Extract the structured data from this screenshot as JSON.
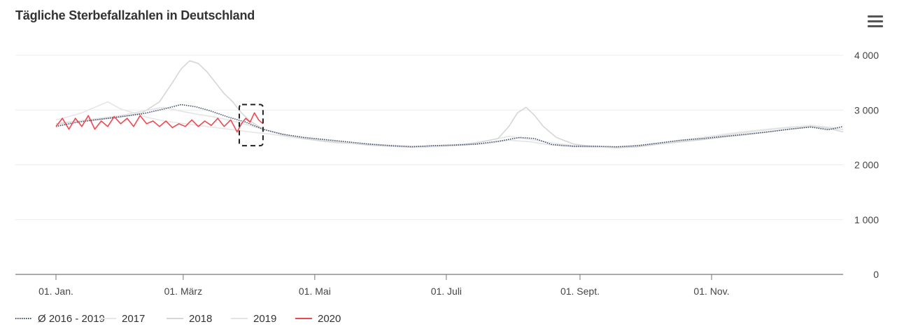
{
  "chart_data": {
    "type": "line",
    "title": "Tägliche Sterbefallzahlen in Deutschland",
    "xlabel": "",
    "ylabel": "",
    "x_unit": "day of year",
    "xlim": [
      0,
      365
    ],
    "ylim": [
      0,
      4000
    ],
    "yticks": [
      {
        "value": 0,
        "label": "0"
      },
      {
        "value": 1000,
        "label": "1 000"
      },
      {
        "value": 2000,
        "label": "2 000"
      },
      {
        "value": 3000,
        "label": "3 000"
      },
      {
        "value": 4000,
        "label": "4 000"
      }
    ],
    "xticks": [
      {
        "value": 0,
        "label": "01. Jan."
      },
      {
        "value": 59,
        "label": "01. März"
      },
      {
        "value": 120,
        "label": "01. Mai"
      },
      {
        "value": 181,
        "label": "01. Juli"
      },
      {
        "value": 243,
        "label": "01. Sept."
      },
      {
        "value": 304,
        "label": "01. Nov."
      }
    ],
    "grid": true,
    "legend_position": "bottom-left",
    "annotation": {
      "type": "dashed-box",
      "x_range": [
        85,
        96
      ],
      "y_range": [
        2350,
        3100
      ]
    },
    "series": [
      {
        "name": "Ø 2016 - 2019",
        "color": "#3d4a6b",
        "style": "dotted",
        "points": [
          [
            0,
            2700
          ],
          [
            10,
            2780
          ],
          [
            20,
            2830
          ],
          [
            30,
            2880
          ],
          [
            40,
            2930
          ],
          [
            50,
            3020
          ],
          [
            58,
            3100
          ],
          [
            65,
            3060
          ],
          [
            72,
            2980
          ],
          [
            80,
            2870
          ],
          [
            88,
            2780
          ],
          [
            96,
            2650
          ],
          [
            105,
            2560
          ],
          [
            115,
            2500
          ],
          [
            125,
            2460
          ],
          [
            135,
            2420
          ],
          [
            145,
            2380
          ],
          [
            155,
            2350
          ],
          [
            165,
            2330
          ],
          [
            175,
            2350
          ],
          [
            185,
            2360
          ],
          [
            195,
            2380
          ],
          [
            205,
            2430
          ],
          [
            215,
            2500
          ],
          [
            222,
            2480
          ],
          [
            230,
            2370
          ],
          [
            240,
            2340
          ],
          [
            250,
            2340
          ],
          [
            260,
            2330
          ],
          [
            270,
            2350
          ],
          [
            280,
            2400
          ],
          [
            290,
            2450
          ],
          [
            300,
            2480
          ],
          [
            310,
            2520
          ],
          [
            320,
            2560
          ],
          [
            330,
            2600
          ],
          [
            340,
            2650
          ],
          [
            350,
            2690
          ],
          [
            358,
            2640
          ],
          [
            365,
            2700
          ]
        ]
      },
      {
        "name": "2017",
        "color": "#e6e6e6",
        "style": "solid",
        "points": [
          [
            0,
            2820
          ],
          [
            6,
            2880
          ],
          [
            12,
            2950
          ],
          [
            18,
            3050
          ],
          [
            24,
            3150
          ],
          [
            30,
            3020
          ],
          [
            36,
            2950
          ],
          [
            42,
            2870
          ],
          [
            50,
            2800
          ],
          [
            60,
            2750
          ],
          [
            70,
            2700
          ],
          [
            80,
            2650
          ],
          [
            90,
            2600
          ],
          [
            100,
            2560
          ],
          [
            110,
            2500
          ],
          [
            120,
            2450
          ],
          [
            130,
            2400
          ],
          [
            140,
            2390
          ],
          [
            150,
            2370
          ],
          [
            160,
            2350
          ],
          [
            170,
            2340
          ],
          [
            180,
            2360
          ],
          [
            190,
            2380
          ],
          [
            200,
            2440
          ],
          [
            210,
            2520
          ],
          [
            220,
            2460
          ],
          [
            230,
            2400
          ],
          [
            240,
            2350
          ],
          [
            250,
            2340
          ],
          [
            260,
            2320
          ],
          [
            270,
            2360
          ],
          [
            280,
            2400
          ],
          [
            290,
            2450
          ],
          [
            300,
            2500
          ],
          [
            310,
            2560
          ],
          [
            320,
            2610
          ],
          [
            330,
            2650
          ],
          [
            340,
            2690
          ],
          [
            350,
            2710
          ],
          [
            360,
            2660
          ],
          [
            365,
            2650
          ]
        ]
      },
      {
        "name": "2018",
        "color": "#d6d6d6",
        "style": "solid",
        "points": [
          [
            0,
            2750
          ],
          [
            10,
            2800
          ],
          [
            20,
            2830
          ],
          [
            30,
            2870
          ],
          [
            40,
            2950
          ],
          [
            48,
            3150
          ],
          [
            54,
            3500
          ],
          [
            58,
            3750
          ],
          [
            62,
            3900
          ],
          [
            66,
            3850
          ],
          [
            70,
            3700
          ],
          [
            74,
            3500
          ],
          [
            78,
            3300
          ],
          [
            82,
            3150
          ],
          [
            86,
            2950
          ],
          [
            90,
            2800
          ],
          [
            96,
            2650
          ],
          [
            105,
            2550
          ],
          [
            115,
            2480
          ],
          [
            125,
            2430
          ],
          [
            135,
            2400
          ],
          [
            145,
            2360
          ],
          [
            155,
            2340
          ],
          [
            165,
            2320
          ],
          [
            175,
            2340
          ],
          [
            185,
            2360
          ],
          [
            195,
            2400
          ],
          [
            205,
            2480
          ],
          [
            210,
            2700
          ],
          [
            214,
            2950
          ],
          [
            218,
            3050
          ],
          [
            222,
            2900
          ],
          [
            226,
            2700
          ],
          [
            232,
            2500
          ],
          [
            240,
            2380
          ],
          [
            250,
            2330
          ],
          [
            260,
            2310
          ],
          [
            270,
            2330
          ],
          [
            280,
            2380
          ],
          [
            290,
            2420
          ],
          [
            300,
            2460
          ],
          [
            310,
            2510
          ],
          [
            320,
            2550
          ],
          [
            330,
            2600
          ],
          [
            340,
            2650
          ],
          [
            350,
            2700
          ],
          [
            360,
            2650
          ],
          [
            365,
            2600
          ]
        ]
      },
      {
        "name": "2019",
        "color": "#e3e3e3",
        "style": "solid",
        "points": [
          [
            0,
            2720
          ],
          [
            10,
            2800
          ],
          [
            20,
            2850
          ],
          [
            30,
            2900
          ],
          [
            40,
            2980
          ],
          [
            50,
            3050
          ],
          [
            58,
            2980
          ],
          [
            66,
            2920
          ],
          [
            74,
            2870
          ],
          [
            82,
            2800
          ],
          [
            90,
            2720
          ],
          [
            100,
            2600
          ],
          [
            110,
            2520
          ],
          [
            120,
            2470
          ],
          [
            130,
            2430
          ],
          [
            140,
            2390
          ],
          [
            150,
            2360
          ],
          [
            160,
            2330
          ],
          [
            170,
            2320
          ],
          [
            180,
            2340
          ],
          [
            190,
            2360
          ],
          [
            200,
            2390
          ],
          [
            210,
            2450
          ],
          [
            220,
            2420
          ],
          [
            230,
            2360
          ],
          [
            240,
            2330
          ],
          [
            250,
            2320
          ],
          [
            260,
            2330
          ],
          [
            270,
            2350
          ],
          [
            280,
            2390
          ],
          [
            290,
            2440
          ],
          [
            300,
            2490
          ],
          [
            310,
            2540
          ],
          [
            320,
            2590
          ],
          [
            330,
            2640
          ],
          [
            340,
            2680
          ],
          [
            350,
            2720
          ],
          [
            360,
            2680
          ],
          [
            365,
            2640
          ]
        ]
      },
      {
        "name": "2020",
        "color": "#f0484e",
        "style": "solid",
        "points": [
          [
            0,
            2700
          ],
          [
            3,
            2850
          ],
          [
            6,
            2650
          ],
          [
            9,
            2850
          ],
          [
            12,
            2700
          ],
          [
            15,
            2900
          ],
          [
            18,
            2650
          ],
          [
            21,
            2800
          ],
          [
            24,
            2700
          ],
          [
            27,
            2880
          ],
          [
            30,
            2750
          ],
          [
            33,
            2850
          ],
          [
            36,
            2700
          ],
          [
            39,
            2900
          ],
          [
            42,
            2750
          ],
          [
            45,
            2800
          ],
          [
            48,
            2700
          ],
          [
            51,
            2800
          ],
          [
            54,
            2680
          ],
          [
            57,
            2750
          ],
          [
            60,
            2700
          ],
          [
            63,
            2820
          ],
          [
            66,
            2700
          ],
          [
            69,
            2800
          ],
          [
            72,
            2720
          ],
          [
            75,
            2850
          ],
          [
            78,
            2700
          ],
          [
            81,
            2820
          ],
          [
            84,
            2600
          ],
          [
            86,
            2750
          ],
          [
            88,
            2850
          ],
          [
            90,
            2780
          ],
          [
            92,
            2950
          ],
          [
            94,
            2820
          ],
          [
            96,
            2750
          ]
        ]
      }
    ]
  }
}
